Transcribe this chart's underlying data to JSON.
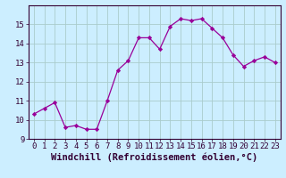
{
  "x": [
    0,
    1,
    2,
    3,
    4,
    5,
    6,
    7,
    8,
    9,
    10,
    11,
    12,
    13,
    14,
    15,
    16,
    17,
    18,
    19,
    20,
    21,
    22,
    23
  ],
  "y": [
    10.3,
    10.6,
    10.9,
    9.6,
    9.7,
    9.5,
    9.5,
    11.0,
    12.6,
    13.1,
    14.3,
    14.3,
    13.7,
    14.9,
    15.3,
    15.2,
    15.3,
    14.8,
    14.3,
    13.4,
    12.8,
    13.1,
    13.3,
    13.0
  ],
  "line_color": "#990099",
  "marker": "D",
  "marker_size": 2.2,
  "bg_color": "#cceeff",
  "grid_color": "#aacccc",
  "xlabel": "Windchill (Refroidissement éolien,°C)",
  "xlabel_fontsize": 7.5,
  "tick_fontsize": 6.5,
  "ylim": [
    9,
    16
  ],
  "xlim": [
    -0.5,
    23.5
  ],
  "yticks": [
    9,
    10,
    11,
    12,
    13,
    14,
    15
  ],
  "xticks": [
    0,
    1,
    2,
    3,
    4,
    5,
    6,
    7,
    8,
    9,
    10,
    11,
    12,
    13,
    14,
    15,
    16,
    17,
    18,
    19,
    20,
    21,
    22,
    23
  ]
}
